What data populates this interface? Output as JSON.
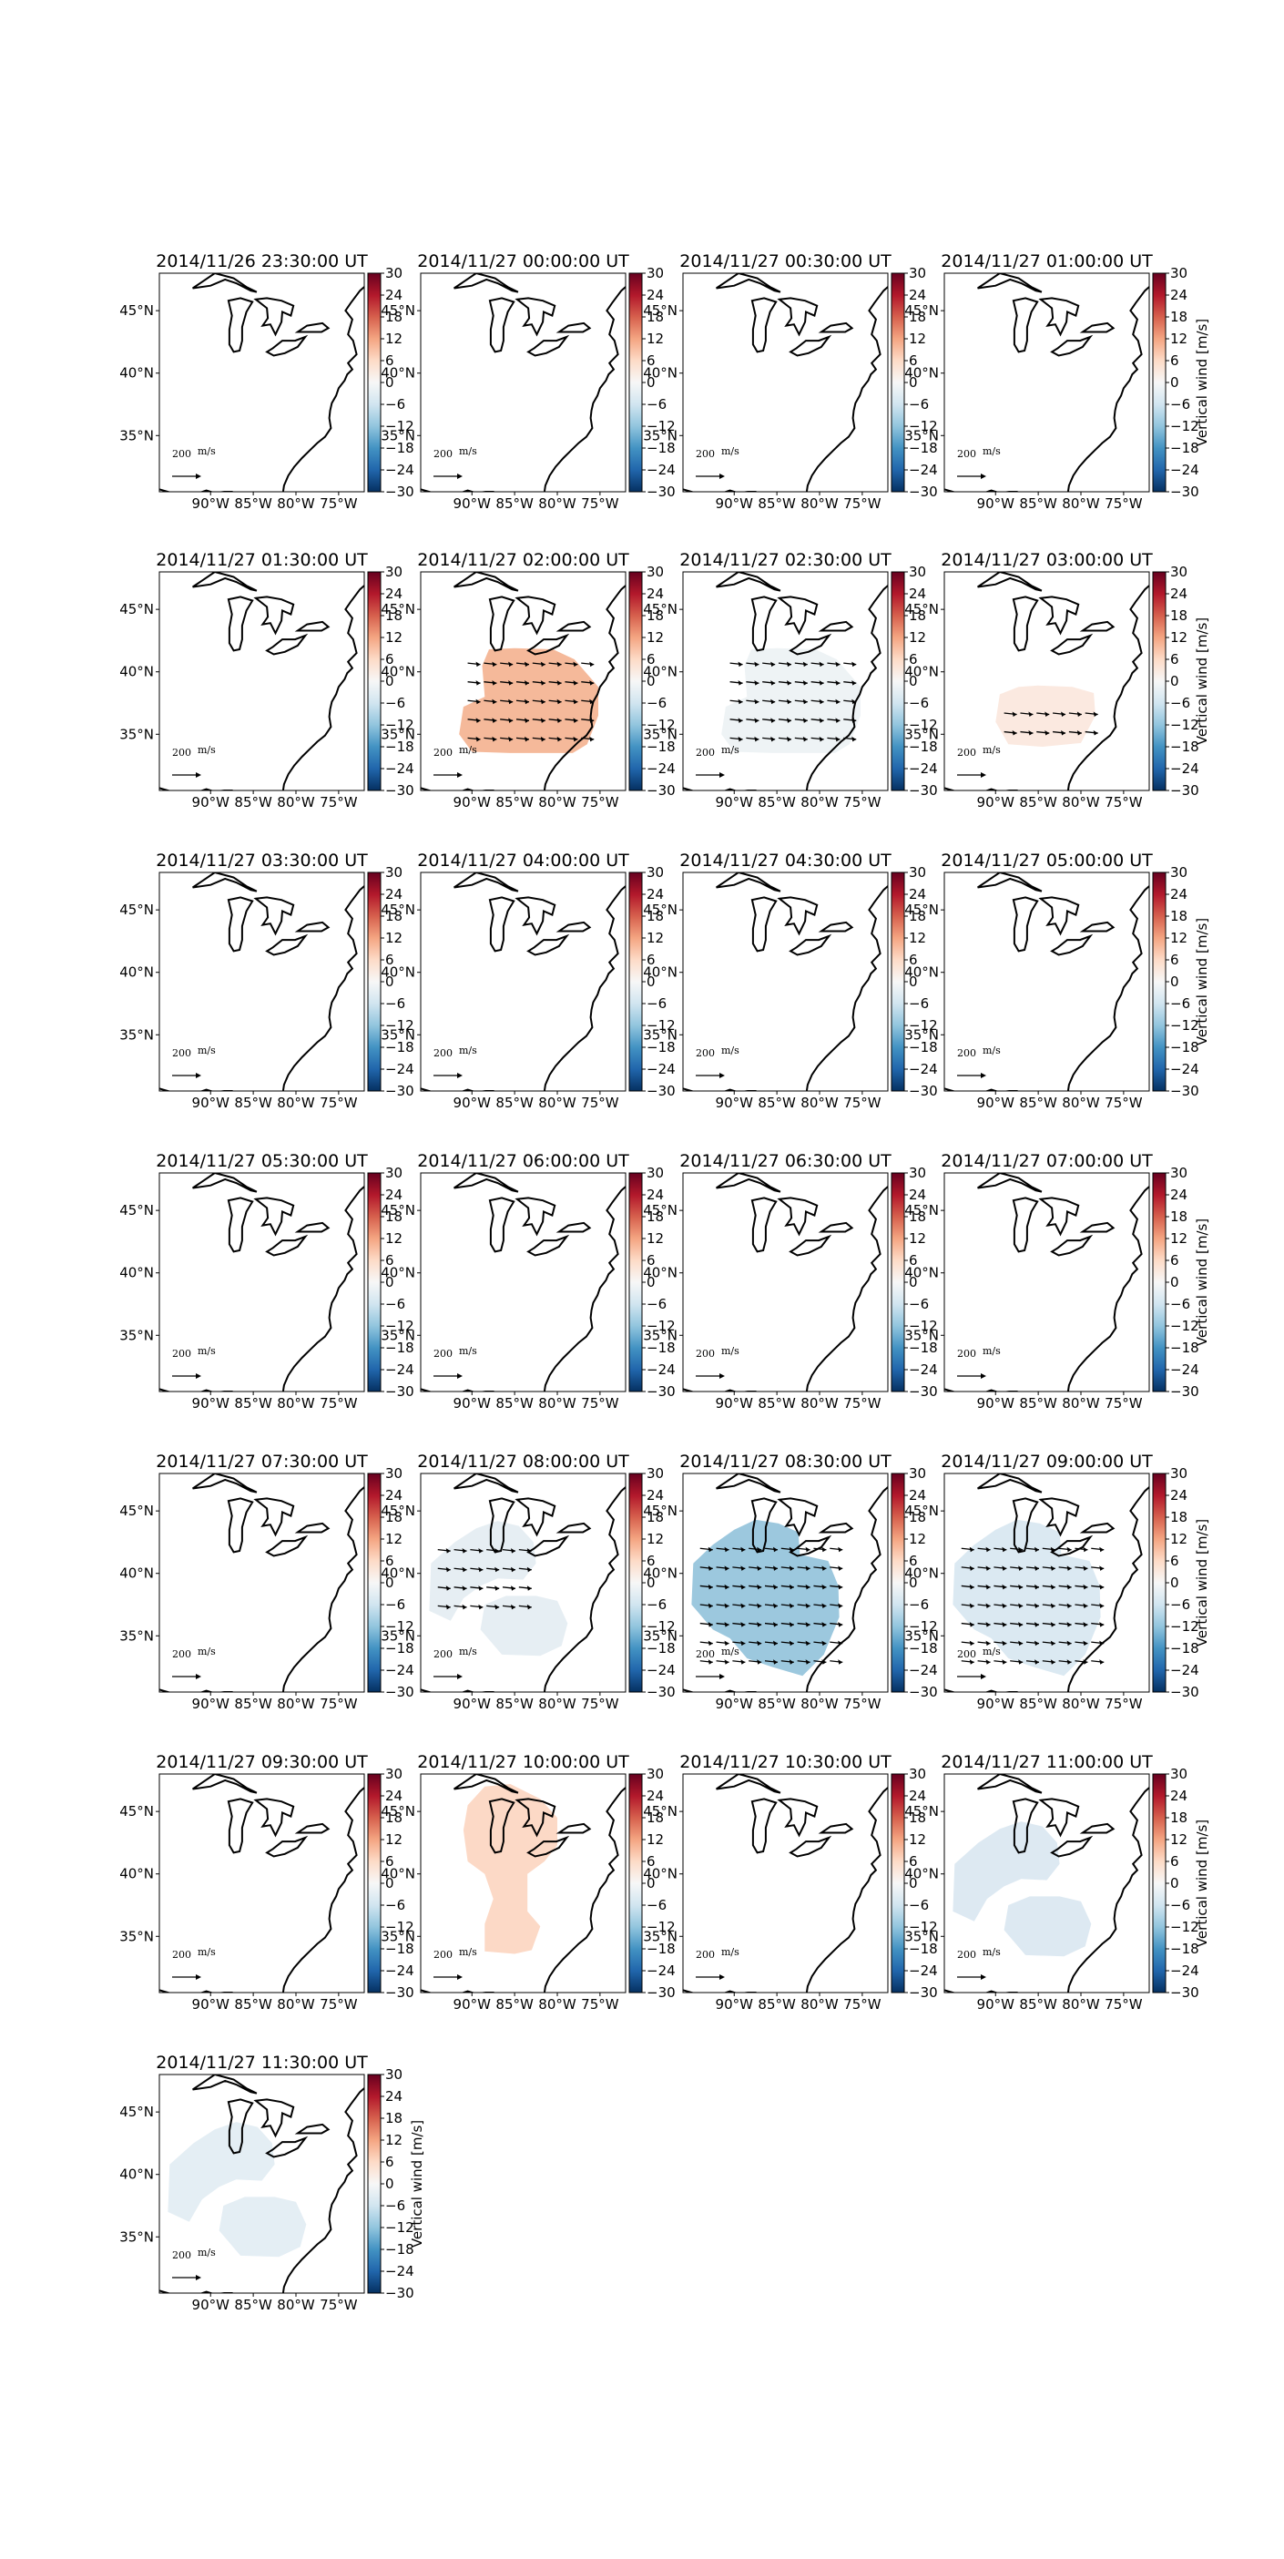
{
  "figure": {
    "colorbar": {
      "label": "Vertical wind [m/s]",
      "ticks": [
        30,
        24,
        18,
        12,
        6,
        0,
        -6,
        -12,
        -18,
        -24,
        -30
      ],
      "colormap": [
        "#67001f",
        "#b2182b",
        "#d6604d",
        "#f4a582",
        "#fddbc7",
        "#f7f7f7",
        "#d1e5f0",
        "#92c5de",
        "#4393c3",
        "#2166ac",
        "#053061"
      ]
    },
    "lat_ticks": [
      "45°N",
      "40°N",
      "35°N"
    ],
    "lon_ticks": [
      "90°W",
      "85°W",
      "80°W",
      "75°W"
    ],
    "reference_arrow_label": "200 m/s"
  },
  "chart_data": [
    {
      "type": "heatmap",
      "title": "2014/11/26 23:30:00 UT",
      "value_m_s": 0,
      "region": null,
      "color": "#ffffff",
      "arrows": false
    },
    {
      "type": "heatmap",
      "title": "2014/11/27 00:00:00 UT",
      "value_m_s": 0,
      "region": null,
      "color": "#ffffff",
      "arrows": false
    },
    {
      "type": "heatmap",
      "title": "2014/11/27 00:30:00 UT",
      "value_m_s": 0,
      "region": null,
      "color": "#ffffff",
      "arrows": false
    },
    {
      "type": "heatmap",
      "title": "2014/11/27 01:00:00 UT",
      "value_m_s": 0,
      "region": null,
      "color": "#ffffff",
      "arrows": false
    },
    {
      "type": "heatmap",
      "title": "2014/11/27 01:30:00 UT",
      "value_m_s": 0,
      "region": null,
      "color": "#ffffff",
      "arrows": false
    },
    {
      "type": "heatmap",
      "title": "2014/11/27 02:00:00 UT",
      "value_m_s": 8,
      "region": "south",
      "color": "#f5b99a",
      "arrows": true
    },
    {
      "type": "heatmap",
      "title": "2014/11/27 02:30:00 UT",
      "value_m_s": -1,
      "region": "south",
      "color": "#eef3f5",
      "arrows": true
    },
    {
      "type": "heatmap",
      "title": "2014/11/27 03:00:00 UT",
      "value_m_s": 2,
      "region": "south-small",
      "color": "#fbe9e0",
      "arrows": true
    },
    {
      "type": "heatmap",
      "title": "2014/11/27 03:30:00 UT",
      "value_m_s": 0,
      "region": null,
      "color": "#ffffff",
      "arrows": false
    },
    {
      "type": "heatmap",
      "title": "2014/11/27 04:00:00 UT",
      "value_m_s": 0,
      "region": null,
      "color": "#ffffff",
      "arrows": false
    },
    {
      "type": "heatmap",
      "title": "2014/11/27 04:30:00 UT",
      "value_m_s": 0,
      "region": null,
      "color": "#ffffff",
      "arrows": false
    },
    {
      "type": "heatmap",
      "title": "2014/11/27 05:00:00 UT",
      "value_m_s": 0,
      "region": null,
      "color": "#ffffff",
      "arrows": false
    },
    {
      "type": "heatmap",
      "title": "2014/11/27 05:30:00 UT",
      "value_m_s": 0,
      "region": null,
      "color": "#ffffff",
      "arrows": false
    },
    {
      "type": "heatmap",
      "title": "2014/11/27 06:00:00 UT",
      "value_m_s": 0,
      "region": null,
      "color": "#ffffff",
      "arrows": false
    },
    {
      "type": "heatmap",
      "title": "2014/11/27 06:30:00 UT",
      "value_m_s": 0,
      "region": null,
      "color": "#ffffff",
      "arrows": false
    },
    {
      "type": "heatmap",
      "title": "2014/11/27 07:00:00 UT",
      "value_m_s": 0,
      "region": null,
      "color": "#ffffff",
      "arrows": false
    },
    {
      "type": "heatmap",
      "title": "2014/11/27 07:30:00 UT",
      "value_m_s": 0,
      "region": null,
      "color": "#ffffff",
      "arrows": false
    },
    {
      "type": "heatmap",
      "title": "2014/11/27 08:00:00 UT",
      "value_m_s": -2,
      "region": "split",
      "color": "#e6eef3",
      "arrows": true
    },
    {
      "type": "heatmap",
      "title": "2014/11/27 08:30:00 UT",
      "value_m_s": -10,
      "region": "large",
      "color": "#9cc8de",
      "arrows": true
    },
    {
      "type": "heatmap",
      "title": "2014/11/27 09:00:00 UT",
      "value_m_s": -4,
      "region": "large",
      "color": "#dbe9f2",
      "arrows": true
    },
    {
      "type": "heatmap",
      "title": "2014/11/27 09:30:00 UT",
      "value_m_s": 0,
      "region": null,
      "color": "#ffffff",
      "arrows": false
    },
    {
      "type": "heatmap",
      "title": "2014/11/27 10:00:00 UT",
      "value_m_s": 6,
      "region": "north",
      "color": "#fcd9c6",
      "arrows": false
    },
    {
      "type": "heatmap",
      "title": "2014/11/27 10:30:00 UT",
      "value_m_s": 0,
      "region": null,
      "color": "#ffffff",
      "arrows": false
    },
    {
      "type": "heatmap",
      "title": "2014/11/27 11:00:00 UT",
      "value_m_s": -3,
      "region": "split",
      "color": "#dde9f2",
      "arrows": false
    },
    {
      "type": "heatmap",
      "title": "2014/11/27 11:30:00 UT",
      "value_m_s": -2,
      "region": "split",
      "color": "#e4eef4",
      "arrows": false
    }
  ]
}
